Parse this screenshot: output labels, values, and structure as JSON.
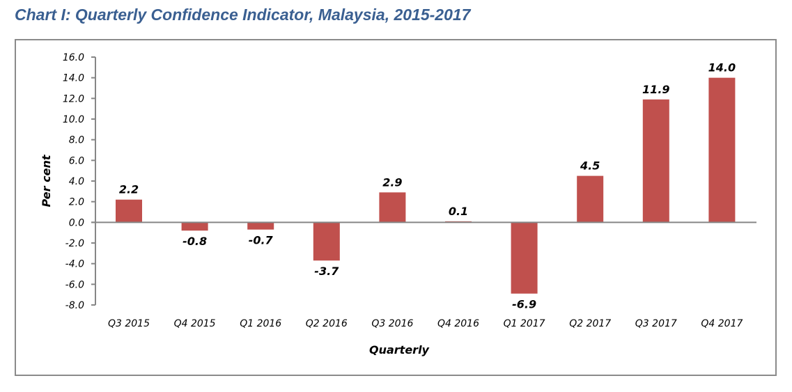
{
  "chart_data": {
    "type": "bar",
    "title": "Chart I: Quarterly Confidence Indicator, Malaysia, 2015-2017",
    "xlabel": "Quarterly",
    "ylabel": "Per cent",
    "ylim": [
      -8.0,
      16.0
    ],
    "ytick_step": 2.0,
    "yticks": [
      "16.0",
      "14.0",
      "12.0",
      "10.0",
      "8.0",
      "6.0",
      "4.0",
      "2.0",
      "0.0",
      "-2.0",
      "-4.0",
      "-6.0",
      "-8.0"
    ],
    "grid": false,
    "legend": "none",
    "categories": [
      "Q3 2015",
      "Q4 2015",
      "Q1 2016",
      "Q2 2016",
      "Q3 2016",
      "Q4 2016",
      "Q1 2017",
      "Q2 2017",
      "Q3 2017",
      "Q4 2017"
    ],
    "values": [
      2.2,
      -0.8,
      -0.7,
      -3.7,
      2.9,
      0.1,
      -6.9,
      4.5,
      11.9,
      14.0
    ],
    "data_labels": [
      "2.2",
      "-0.8",
      "-0.7",
      "-3.7",
      "2.9",
      "0.1",
      "-6.9",
      "4.5",
      "11.9",
      "14.0"
    ],
    "colors": {
      "bar": "#c0504d",
      "title": "#3a5f91",
      "axis": "#868686",
      "frame": "#8a8a8a"
    }
  }
}
